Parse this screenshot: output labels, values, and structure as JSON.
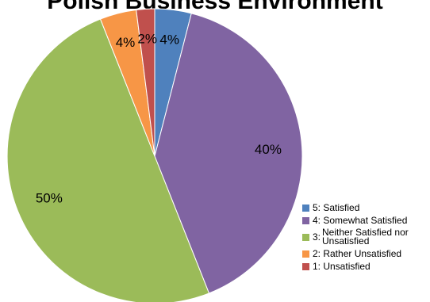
{
  "chart_data": {
    "type": "pie",
    "title": "Polish Business Environment",
    "slices": [
      {
        "label": "5: Satisfied",
        "value": 4,
        "display": "4%",
        "color": "#4F81BD"
      },
      {
        "label": "4: Somewhat Satisfied",
        "value": 40,
        "display": "40%",
        "color": "#8064A2"
      },
      {
        "label_prefix": "3:",
        "label": "Neither Satisfied nor Unsatisfied",
        "value": 50,
        "display": "50%",
        "color": "#9BBB59"
      },
      {
        "label": "2: Rather Unsatisfied",
        "value": 4,
        "display": "4%",
        "color": "#F79646"
      },
      {
        "label": "1: Unsatisfied",
        "value": 2,
        "display": "2%",
        "color": "#C0504D"
      }
    ],
    "legend_position": "bottom-right"
  }
}
